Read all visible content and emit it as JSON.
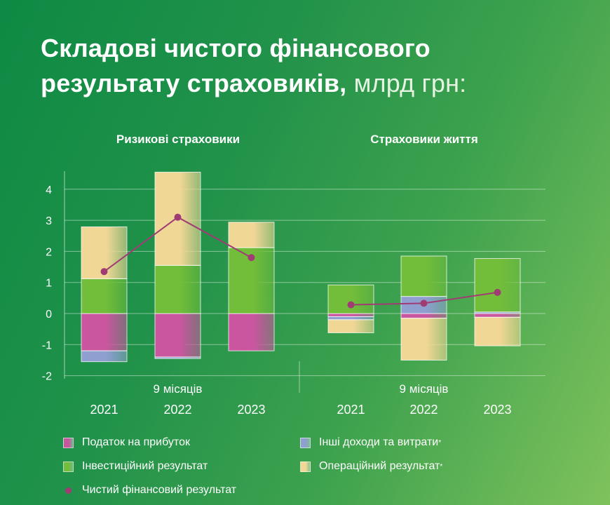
{
  "title_main": "Складові чистого фінансового результату страховиків,",
  "title_unit": " млрд грн:",
  "colors": {
    "tax": "#c9569f",
    "other": "#8e9fd0",
    "investment": "#72bd3a",
    "operating": "#f1d796",
    "net": "#a03c73"
  },
  "chart_data": {
    "type": "bar",
    "stacked": true,
    "y_ticks": [
      "4",
      "3",
      "2",
      "1",
      "0",
      "-1",
      "-2"
    ],
    "ylim": [
      -2,
      4.5
    ],
    "period_label": "9 місяців",
    "panels": [
      {
        "title": "Ризикові страховики",
        "categories": [
          "2021",
          "2022",
          "2023"
        ],
        "series": [
          {
            "name": "Податок на прибуток",
            "key": "tax",
            "values": [
              -1.2,
              -1.4,
              -1.2
            ]
          },
          {
            "name": "Інші доходи та витрати",
            "key": "other",
            "values": [
              -0.35,
              -0.05,
              0.0
            ]
          },
          {
            "name": "Інвестиційний результат",
            "key": "investment",
            "values": [
              1.12,
              1.55,
              2.12
            ]
          },
          {
            "name": "Операційний результат",
            "key": "operating",
            "values": [
              1.67,
              3.0,
              0.82
            ]
          }
        ],
        "net": [
          1.35,
          3.1,
          1.8
        ]
      },
      {
        "title": "Страховики життя",
        "categories": [
          "2021",
          "2022",
          "2023"
        ],
        "series": [
          {
            "name": "Податок на прибуток",
            "key": "tax",
            "values": [
              -0.1,
              -0.15,
              -0.12
            ]
          },
          {
            "name": "Інші доходи та витрати",
            "key": "other",
            "values": [
              -0.1,
              0.55,
              0.05
            ]
          },
          {
            "name": "Інвестиційний результат",
            "key": "investment",
            "values": [
              0.92,
              1.3,
              1.72
            ]
          },
          {
            "name": "Операційний результат",
            "key": "operating",
            "values": [
              -0.42,
              -1.35,
              -0.92
            ]
          }
        ],
        "net": [
          0.28,
          0.33,
          0.68
        ]
      }
    ]
  },
  "legend": {
    "tax": "Податок на прибуток",
    "other": "Інші доходи та витрати",
    "other_mark": "*",
    "investment": "Інвестиційний результат",
    "operating": "Операційний результат",
    "operating_mark": "*",
    "net": "Чистий фінансовий результат"
  }
}
